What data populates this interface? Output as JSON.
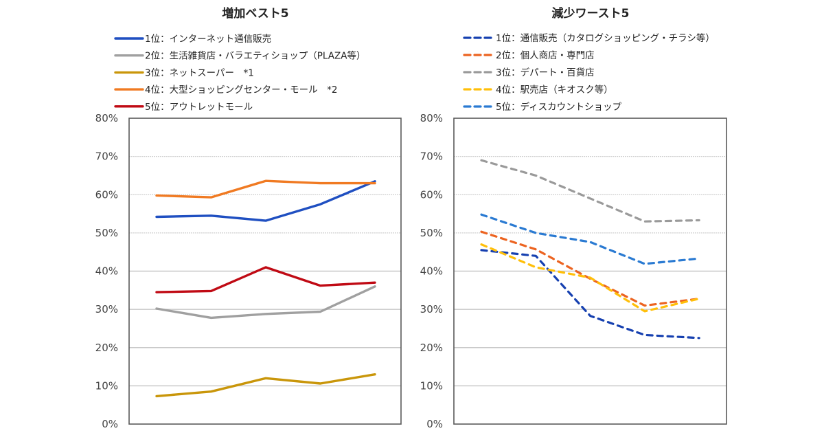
{
  "chart_data": [
    {
      "type": "line",
      "title": "増加ベスト5",
      "xlabel": "",
      "ylabel": "",
      "x": [
        "1",
        "2",
        "3",
        "4",
        "5"
      ],
      "ylim": [
        0,
        80
      ],
      "yticks": [
        "0%",
        "10%",
        "20%",
        "30%",
        "40%",
        "50%",
        "60%",
        "70%",
        "80%"
      ],
      "grid": true,
      "legend_position": "top",
      "line_style": "solid",
      "series": [
        {
          "name": "1位：インターネット通信販売",
          "color": "#1f4fc1",
          "values": [
            54.2,
            54.5,
            53.2,
            57.5,
            63.5
          ]
        },
        {
          "name": "2位：生活雑貨店・バラエティショップ（PLAZA等）",
          "color": "#a0a0a0",
          "values": [
            30.2,
            27.8,
            28.8,
            29.4,
            36.0
          ]
        },
        {
          "name": "3位：ネットスーパー　*1",
          "color": "#c9960a",
          "values": [
            7.3,
            8.5,
            12.0,
            10.6,
            13.0
          ]
        },
        {
          "name": "4位：大型ショッピングセンター・モール　*2",
          "color": "#f07a22",
          "values": [
            59.8,
            59.3,
            63.6,
            63.0,
            63.0
          ]
        },
        {
          "name": "5位：アウトレットモール",
          "color": "#c00a14",
          "values": [
            34.5,
            34.8,
            41.0,
            36.2,
            37.0
          ]
        }
      ]
    },
    {
      "type": "line",
      "title": "減少ワースト5",
      "xlabel": "",
      "ylabel": "",
      "x": [
        "1",
        "2",
        "3",
        "4",
        "5"
      ],
      "ylim": [
        0,
        80
      ],
      "yticks": [
        "0%",
        "10%",
        "20%",
        "30%",
        "40%",
        "50%",
        "60%",
        "70%",
        "80%"
      ],
      "grid": true,
      "legend_position": "top",
      "line_style": "dashed",
      "series": [
        {
          "name": "1位：通信販売（カタログショッピング・チラシ等）",
          "color": "#1640b0",
          "values": [
            45.5,
            44.0,
            28.3,
            23.3,
            22.5
          ]
        },
        {
          "name": "2位：個人商店・専門店",
          "color": "#ec6320",
          "values": [
            50.3,
            45.7,
            38.0,
            31.0,
            32.8
          ]
        },
        {
          "name": "3位：デパート・百貨店",
          "color": "#9a9a9a",
          "values": [
            69.0,
            65.0,
            59.0,
            53.0,
            53.3
          ]
        },
        {
          "name": "4位：駅売店（キオスク等）",
          "color": "#ffbf0a",
          "values": [
            47.0,
            41.0,
            38.3,
            29.5,
            32.8
          ]
        },
        {
          "name": "5位：ディスカウントショップ",
          "color": "#2a7ad2",
          "values": [
            54.8,
            50.0,
            47.6,
            41.9,
            43.3
          ]
        }
      ]
    }
  ]
}
